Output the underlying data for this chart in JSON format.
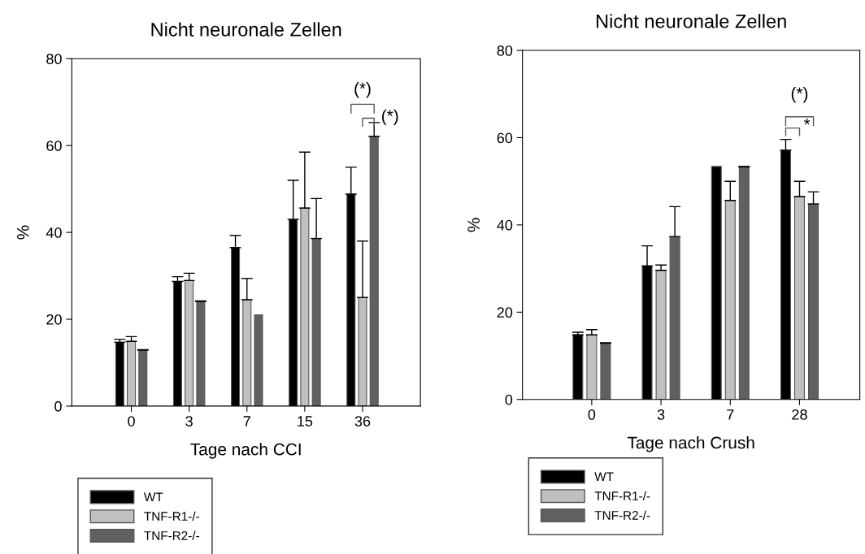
{
  "chart_data": [
    {
      "type": "bar",
      "title": "Nicht neuronale Zellen",
      "xlabel": "Tage nach CCI",
      "ylabel": "%",
      "categories": [
        "0",
        "3",
        "7",
        "15",
        "36"
      ],
      "series": [
        {
          "name": "WT",
          "color": "#000000",
          "values": [
            14.7,
            28.7,
            36.5,
            43,
            48.8
          ],
          "errors": [
            [
              14.7,
              15.4
            ],
            [
              28.7,
              29.8
            ],
            [
              36.5,
              39.3
            ],
            [
              43,
              52
            ],
            [
              48.8,
              55
            ]
          ]
        },
        {
          "name": "TNF-R1-/-",
          "color": "#c0c0c0",
          "values": [
            14.9,
            28.9,
            24.5,
            45.6,
            25
          ],
          "errors": [
            [
              14.9,
              16
            ],
            [
              28.9,
              30.6
            ],
            [
              24.5,
              29.4
            ],
            [
              45.6,
              58.5
            ],
            [
              25,
              38
            ]
          ]
        },
        {
          "name": "TNF-R2-/-",
          "color": "#606060",
          "values": [
            12.9,
            24.1,
            21,
            38.6,
            62.1
          ],
          "errors": [
            [
              12.9,
              13
            ],
            [
              24.1,
              24.2
            ],
            null,
            [
              38.6,
              47.8
            ],
            [
              62.1,
              65.3
            ]
          ]
        }
      ],
      "ylim": [
        0,
        80
      ],
      "yticks": [
        0,
        20,
        40,
        60,
        80
      ],
      "grid": false,
      "legend": "bottom left",
      "annotations": [
        "(*)",
        "(*)"
      ]
    },
    {
      "type": "bar",
      "title": "Nicht neuronale Zellen",
      "xlabel": "Tage nach Crush",
      "ylabel": "%",
      "categories": [
        "0",
        "3",
        "7",
        "28"
      ],
      "series": [
        {
          "name": "WT",
          "color": "#000000",
          "values": [
            14.8,
            30.6,
            53.4,
            57.1
          ],
          "errors": [
            [
              14.8,
              15.4
            ],
            [
              30.6,
              35.2
            ],
            null,
            [
              57.1,
              59.6
            ]
          ]
        },
        {
          "name": "TNF-R1-/-",
          "color": "#c0c0c0",
          "values": [
            14.8,
            29.6,
            45.6,
            46.5
          ],
          "errors": [
            [
              14.8,
              16
            ],
            [
              29.6,
              30.8
            ],
            [
              45.6,
              50
            ],
            [
              46.5,
              50
            ]
          ]
        },
        {
          "name": "TNF-R2-/-",
          "color": "#606060",
          "values": [
            12.9,
            37.3,
            53.3,
            44.8
          ],
          "errors": [
            [
              12.9,
              13
            ],
            [
              37.3,
              44.2
            ],
            [
              53.3,
              53.4
            ],
            [
              44.8,
              47.6
            ]
          ]
        }
      ],
      "ylim": [
        0,
        80
      ],
      "yticks": [
        0,
        20,
        40,
        60,
        80
      ],
      "grid": false,
      "legend": "bottom left",
      "annotations": [
        "(*)",
        "*"
      ]
    }
  ]
}
